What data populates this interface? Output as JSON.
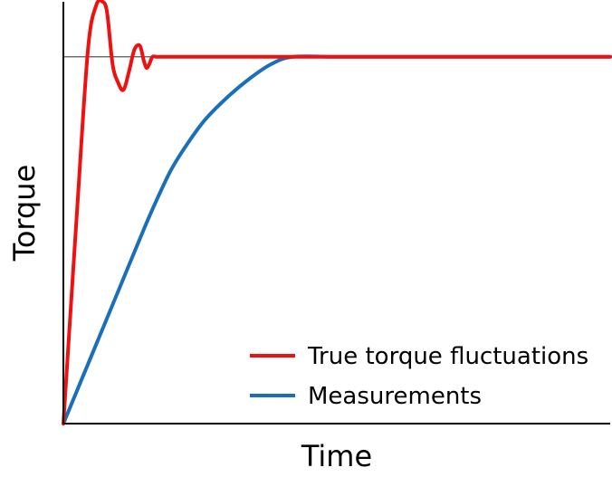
{
  "chart_data": {
    "type": "line",
    "title": "",
    "xlabel": "Time",
    "ylabel": "Torque",
    "xlim": [
      0,
      1
    ],
    "ylim": [
      0,
      1.15
    ],
    "grid": false,
    "legend_position": "bottom-right",
    "reference_lines": [
      {
        "axis": "y",
        "value": 1.0,
        "color": "#555555"
      }
    ],
    "series": [
      {
        "name": "True torque fluctuations",
        "color": "#ee1111",
        "x": [
          0,
          0.025,
          0.045,
          0.06,
          0.072,
          0.08,
          0.09,
          0.1,
          0.11,
          0.12,
          0.13,
          0.14,
          0.147,
          0.152,
          0.157,
          0.163,
          0.17,
          0.18,
          0.2,
          0.25,
          0.35,
          0.5,
          1.0
        ],
        "y": [
          0,
          0.58,
          1.02,
          1.14,
          1.15,
          1.12,
          0.98,
          0.93,
          0.91,
          0.96,
          1.02,
          1.03,
          0.99,
          0.97,
          0.98,
          1.0,
          1.0,
          1.0,
          1.0,
          1.0,
          1.0,
          1.0,
          1.0
        ]
      },
      {
        "name": "Measurements",
        "color": "#1a6fba",
        "x": [
          0,
          0.05,
          0.1,
          0.15,
          0.18,
          0.2,
          0.23,
          0.26,
          0.3,
          0.34,
          0.38,
          0.42,
          0.5,
          0.6,
          0.8,
          1.0
        ],
        "y": [
          0,
          0.18,
          0.36,
          0.54,
          0.64,
          0.7,
          0.77,
          0.83,
          0.89,
          0.94,
          0.98,
          1.0,
          1.0,
          1.0,
          1.0,
          1.0
        ]
      }
    ]
  }
}
